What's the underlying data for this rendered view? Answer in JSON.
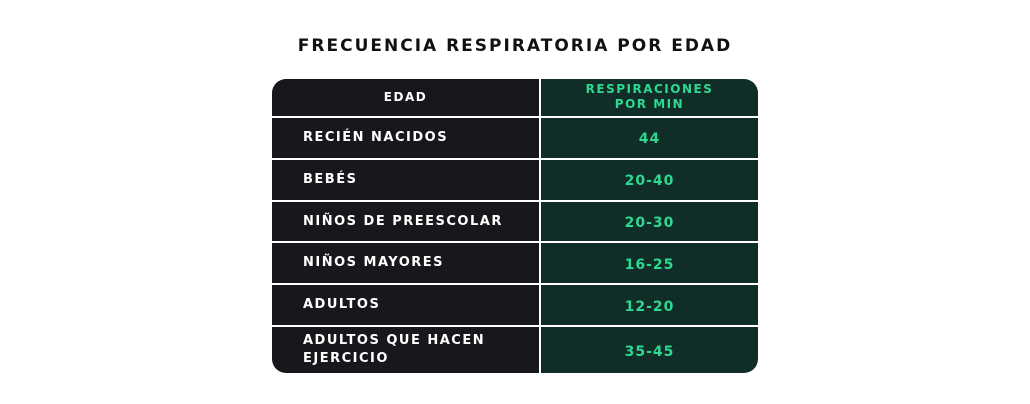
{
  "title": "FRECUENCIA RESPIRATORIA POR EDAD",
  "headers": {
    "age": "EDAD",
    "rate_line1": "RESPIRACIONES",
    "rate_line2": "POR MIN"
  },
  "rows": [
    {
      "age": "RECIÉN NACIDOS",
      "rate": "44"
    },
    {
      "age": "BEBÉS",
      "rate": "20-40"
    },
    {
      "age": "NIÑOS DE PREESCOLAR",
      "rate": "20-30"
    },
    {
      "age": "NIÑOS MAYORES",
      "rate": "16-25"
    },
    {
      "age": "ADULTOS",
      "rate": "12-20"
    },
    {
      "age": "ADULTOS QUE HACEN EJERCICIO",
      "rate": "35-45"
    }
  ],
  "colors": {
    "left_column_bg": "#16181b",
    "right_column_bg": "#112d27",
    "accent_text": "#2fd891",
    "divider": "#ffffff"
  }
}
